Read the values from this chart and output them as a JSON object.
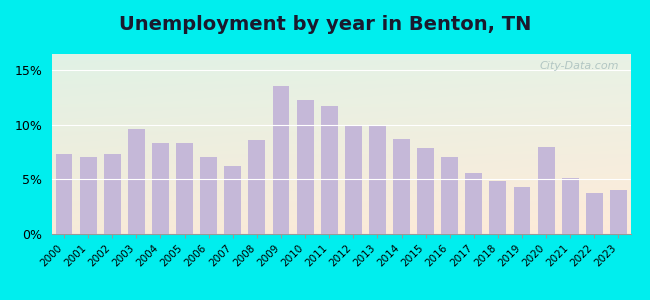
{
  "title": "Unemployment by year in Benton, TN",
  "years": [
    2000,
    2001,
    2002,
    2003,
    2004,
    2005,
    2006,
    2007,
    2008,
    2009,
    2010,
    2011,
    2012,
    2013,
    2014,
    2015,
    2016,
    2017,
    2018,
    2019,
    2020,
    2021,
    2022,
    2023
  ],
  "values": [
    7.3,
    7.1,
    7.3,
    9.6,
    8.3,
    8.3,
    7.1,
    6.2,
    8.6,
    13.6,
    12.3,
    11.7,
    9.9,
    9.9,
    8.7,
    7.9,
    7.1,
    5.6,
    4.9,
    4.3,
    8.0,
    5.1,
    3.8,
    4.0
  ],
  "bar_color": "#c5b8d8",
  "background_outer": "#00eeee",
  "yticks": [
    0,
    5,
    10,
    15
  ],
  "ylim": [
    0,
    16.5
  ],
  "title_fontsize": 14,
  "watermark_text": "City-Data.com",
  "xlabel_fontsize": 7.5,
  "ylabel_fontsize": 9
}
